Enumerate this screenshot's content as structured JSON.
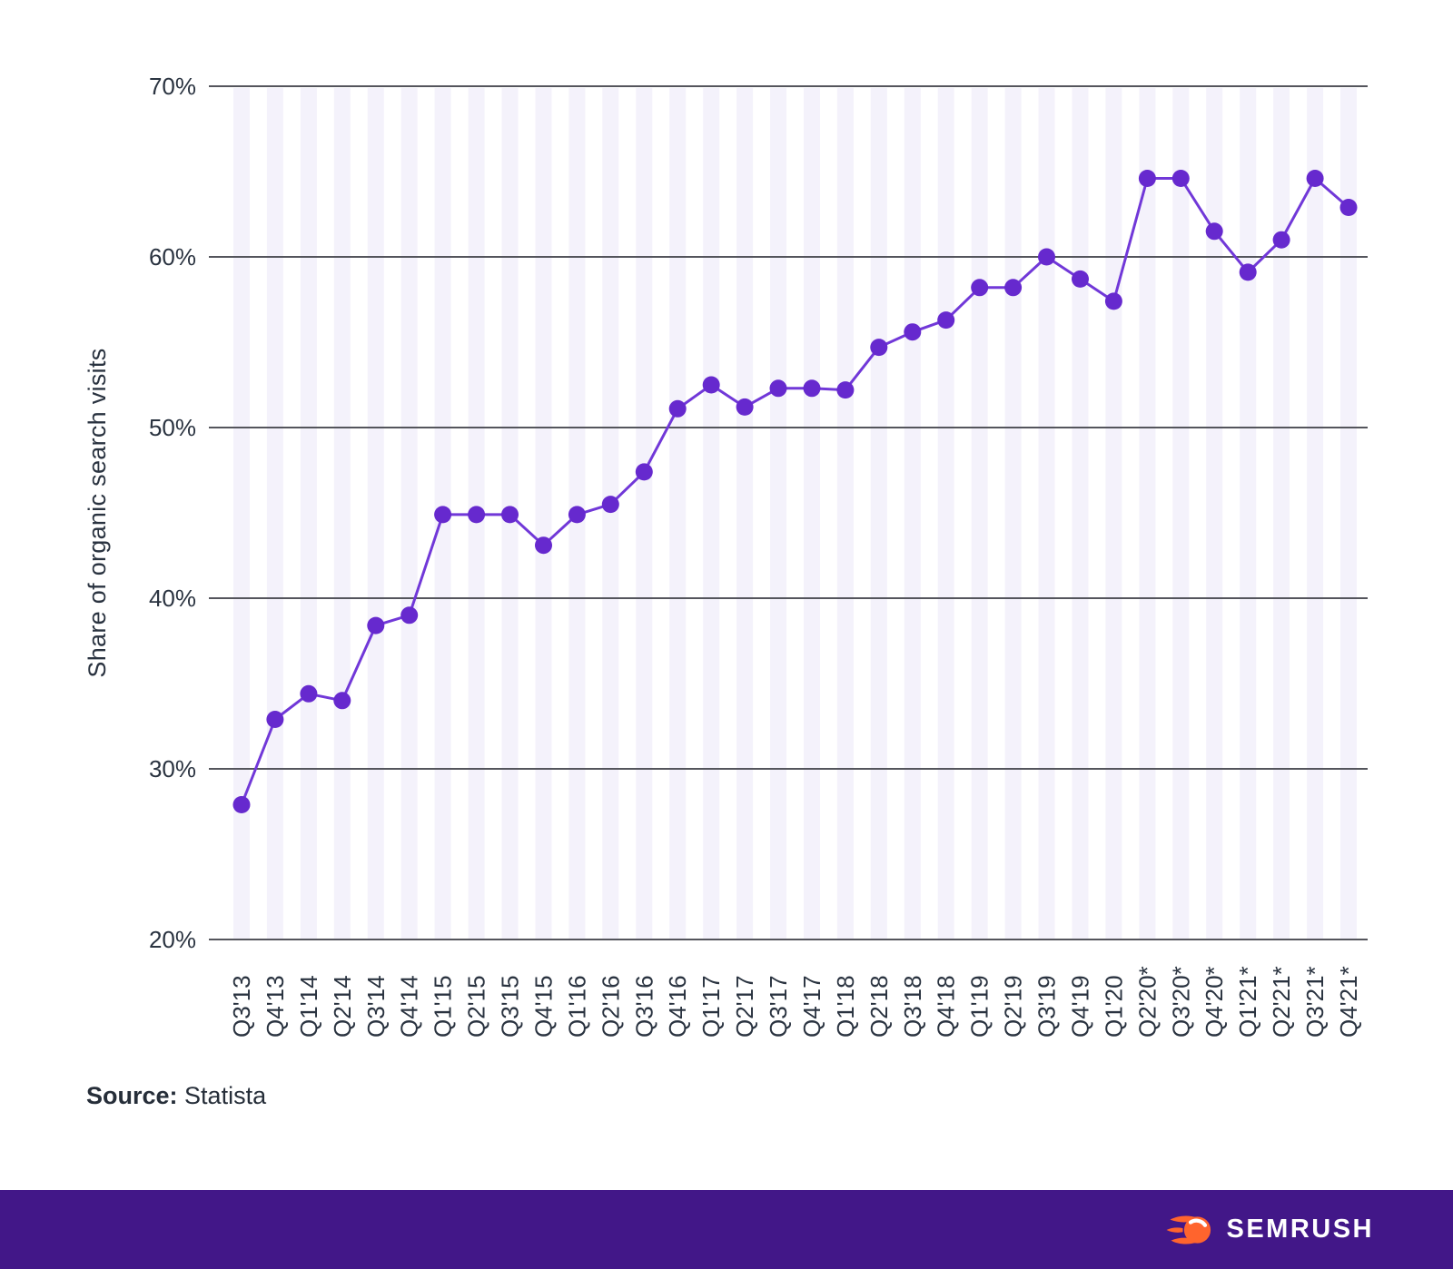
{
  "chart_data": {
    "type": "line",
    "title": "",
    "ylabel": "Share of organic search visits",
    "xlabel": "",
    "ylim": [
      20,
      70
    ],
    "yticks": [
      20,
      30,
      40,
      50,
      60,
      70
    ],
    "ytick_suffix": "%",
    "grid": "horizontal",
    "legend": "none",
    "background_bands": true,
    "categories": [
      "Q3'13",
      "Q4'13",
      "Q1'14",
      "Q2'14",
      "Q3'14",
      "Q4'14",
      "Q1'15",
      "Q2'15",
      "Q3'15",
      "Q4'15",
      "Q1'16",
      "Q2'16",
      "Q3'16",
      "Q4'16",
      "Q1'17",
      "Q2'17",
      "Q3'17",
      "Q4'17",
      "Q1'18",
      "Q2'18",
      "Q3'18",
      "Q4'18",
      "Q1'19",
      "Q2'19",
      "Q3'19",
      "Q4'19",
      "Q1'20",
      "Q2'20*",
      "Q3'20*",
      "Q4'20*",
      "Q1'21*",
      "Q2'21*",
      "Q3'21*",
      "Q4'21*"
    ],
    "values": [
      27.9,
      32.9,
      34.4,
      34.0,
      38.4,
      39.0,
      44.9,
      44.9,
      44.9,
      43.1,
      44.9,
      45.5,
      47.4,
      51.1,
      52.5,
      51.2,
      52.3,
      52.3,
      52.2,
      54.7,
      55.6,
      56.3,
      58.2,
      58.2,
      60.0,
      58.7,
      57.4,
      64.6,
      64.6,
      61.5,
      59.1,
      61.0,
      64.6,
      62.9
    ]
  },
  "source": {
    "label": "Source:",
    "value": "Statista"
  },
  "footer": {
    "brand": "SEMRUSH"
  },
  "colors": {
    "line": "#7138D8",
    "point": "#6629CE",
    "band": "#F4F2FB",
    "gridline": "#54555C",
    "axis_text": "#2A3340",
    "source_text": "#262E39",
    "footer_bg": "#421788",
    "brand_orange": "#FF642D",
    "brand_text": "#FFFFFF",
    "background": "#FFFFFF"
  }
}
